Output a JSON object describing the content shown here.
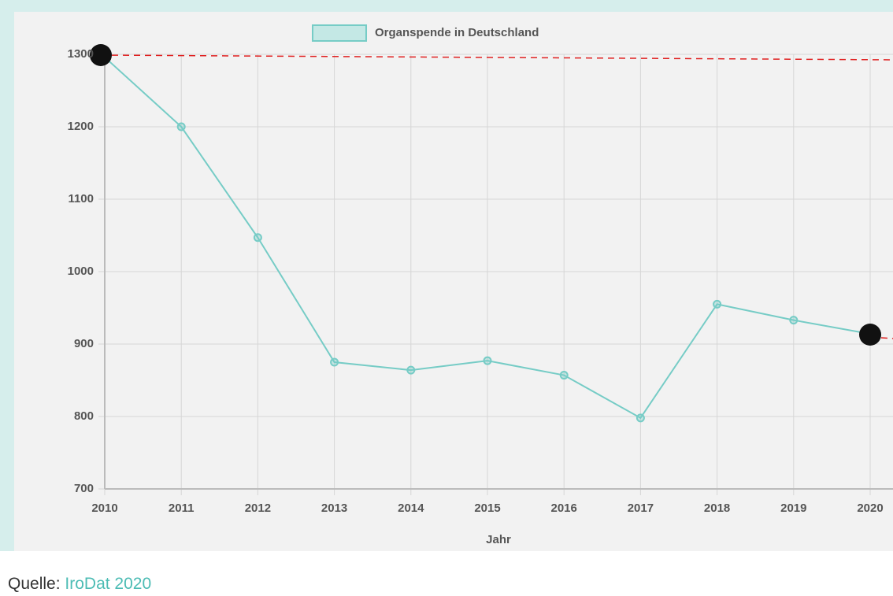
{
  "chart_data": {
    "type": "line",
    "categories": [
      "2010",
      "2011",
      "2012",
      "2013",
      "2014",
      "2015",
      "2016",
      "2017",
      "2018",
      "2019",
      "2020"
    ],
    "series": [
      {
        "name": "Organspende in Deutschland",
        "color": "#76ccc6",
        "values": [
          1296,
          1200,
          1047,
          875,
          864,
          877,
          857,
          798,
          955,
          933,
          914
        ]
      }
    ],
    "x_label": "Jahr",
    "ylim": [
      700,
      1300
    ],
    "yticks": [
      700,
      800,
      900,
      1000,
      1100,
      1200,
      1300
    ],
    "grid": true
  },
  "source": {
    "label": "Quelle:",
    "text": "IroDat 2020"
  }
}
